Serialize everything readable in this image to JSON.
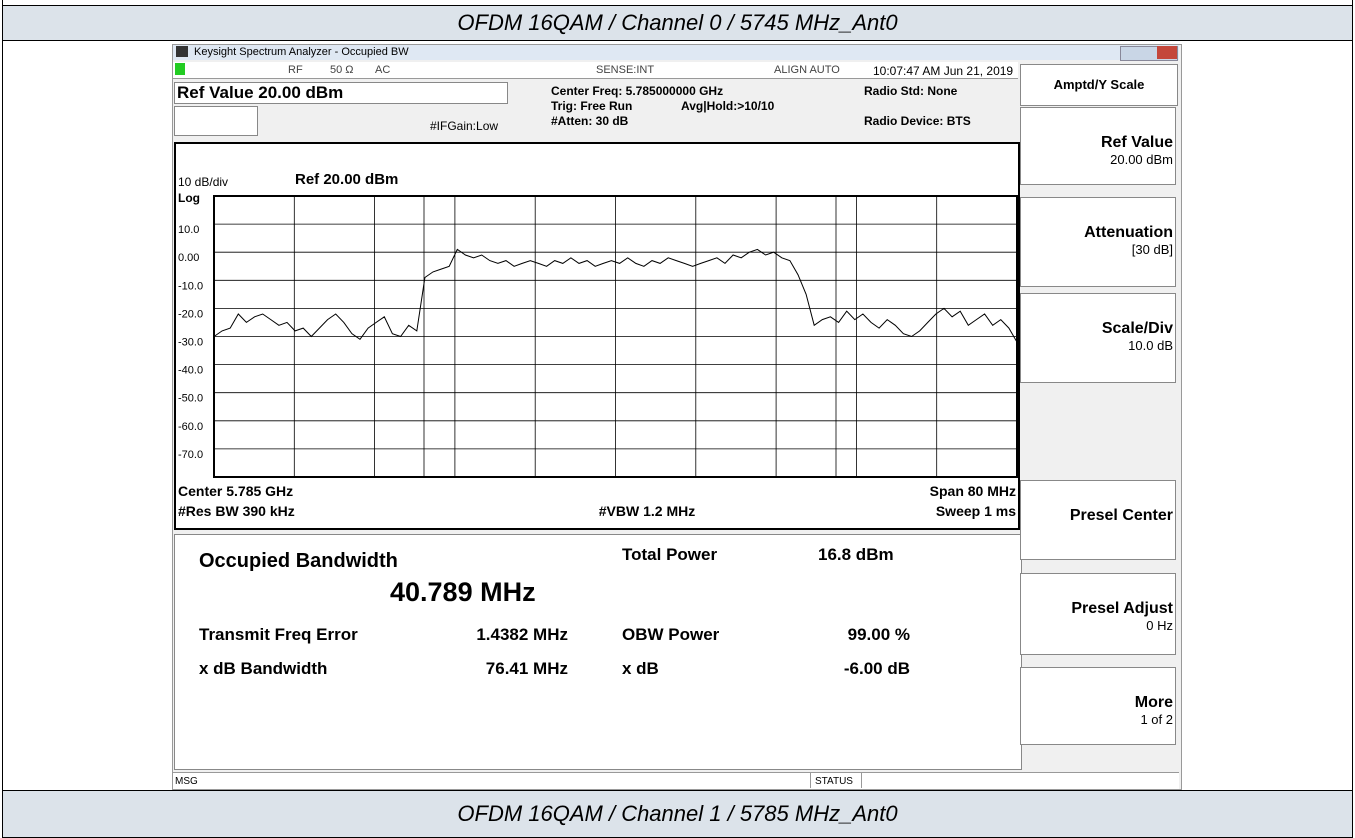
{
  "header": {
    "top_caption": "OFDM 16QAM / Channel 0 / 5745 MHz_Ant0",
    "bottom_caption": "OFDM 16QAM / Channel 1 / 5785 MHz_Ant0"
  },
  "window": {
    "title": "Keysight Spectrum Analyzer - Occupied BW"
  },
  "status": {
    "rf": "RF",
    "impedance": "50 Ω",
    "coupling": "AC",
    "sense": "SENSE:INT",
    "align": "ALIGN AUTO",
    "datetime": "10:07:47 AM Jun 21, 2019"
  },
  "settings": {
    "ref_value": "Ref Value 20.00 dBm",
    "center_freq": "Center Freq: 5.785000000 GHz",
    "trig": "Trig: Free Run",
    "avg_hold": "Avg|Hold:>10/10",
    "atten": "#Atten: 30 dB",
    "if_gain": "#IFGain:Low",
    "radio_std": "Radio Std: None",
    "radio_device": "Radio Device: BTS"
  },
  "plot": {
    "scale_label": "10 dB/div",
    "ref_label": "Ref 20.00 dBm",
    "log_label": "Log",
    "ylim": [
      -80,
      20
    ],
    "yticks": [
      {
        "value": 10,
        "label": "10.0"
      },
      {
        "value": 0,
        "label": "0.00"
      },
      {
        "value": -10,
        "label": "-10.0"
      },
      {
        "value": -20,
        "label": "-20.0"
      },
      {
        "value": -30,
        "label": "-30.0"
      },
      {
        "value": -40,
        "label": "-40.0"
      },
      {
        "value": -50,
        "label": "-50.0"
      },
      {
        "value": -60,
        "label": "-60.0"
      },
      {
        "value": -70,
        "label": "-70.0"
      }
    ],
    "trace": [
      -30,
      -28,
      -27,
      -22,
      -25,
      -23,
      -22,
      -24,
      -26,
      -25,
      -28,
      -27,
      -30,
      -27,
      -24,
      -22,
      -25,
      -29,
      -31,
      -27,
      -25,
      -23,
      -29,
      -30,
      -26,
      -28,
      -9,
      -7,
      -6,
      -5,
      1,
      -1,
      -2,
      -1,
      -3,
      -4,
      -3,
      -5,
      -4,
      -3,
      -4,
      -5,
      -3,
      -4,
      -2,
      -4,
      -3,
      -5,
      -4,
      -3,
      -4,
      -2,
      -4,
      -5,
      -3,
      -4,
      -2,
      -3,
      -4,
      -5,
      -4,
      -3,
      -2,
      -4,
      -1,
      -2,
      0,
      1,
      -1,
      0,
      -2,
      -3,
      -8,
      -15,
      -26,
      -24,
      -23,
      -25,
      -21,
      -24,
      -22,
      -25,
      -27,
      -24,
      -26,
      -29,
      -30,
      -28,
      -25,
      -22,
      -20,
      -23,
      -21,
      -26,
      -24,
      -22,
      -26,
      -24,
      -27,
      -32
    ],
    "trace_color": "#000000",
    "center": "Center  5.785 GHz",
    "res_bw": "#Res BW  390 kHz",
    "vbw": "#VBW  1.2 MHz",
    "span": "Span 80 MHz",
    "sweep": "Sweep  1 ms"
  },
  "results": {
    "obw_label": "Occupied Bandwidth",
    "obw_value": "40.789 MHz",
    "tfe_label": "Transmit Freq Error",
    "tfe_value": "1.4382 MHz",
    "xdb_bw_label": "x dB Bandwidth",
    "xdb_bw_value": "76.41 MHz",
    "total_power_label": "Total Power",
    "total_power_value": "16.8 dBm",
    "obw_power_label": "OBW Power",
    "obw_power_value": "99.00 %",
    "xdb_label": "x dB",
    "xdb_value": "-6.00 dB"
  },
  "softkeys": {
    "menu": "Amptd/Y Scale",
    "keys": [
      {
        "label": "Ref Value",
        "value": "20.00 dBm"
      },
      {
        "label": "Attenuation",
        "value": "[30 dB]"
      },
      {
        "label": "Scale/Div",
        "value": "10.0 dB"
      },
      {
        "label": "Presel Center"
      },
      {
        "label": "Presel Adjust",
        "value": "0 Hz"
      },
      {
        "label": "More",
        "value": "1 of 2"
      }
    ]
  },
  "footer": {
    "msg": "MSG",
    "status": "STATUS"
  }
}
